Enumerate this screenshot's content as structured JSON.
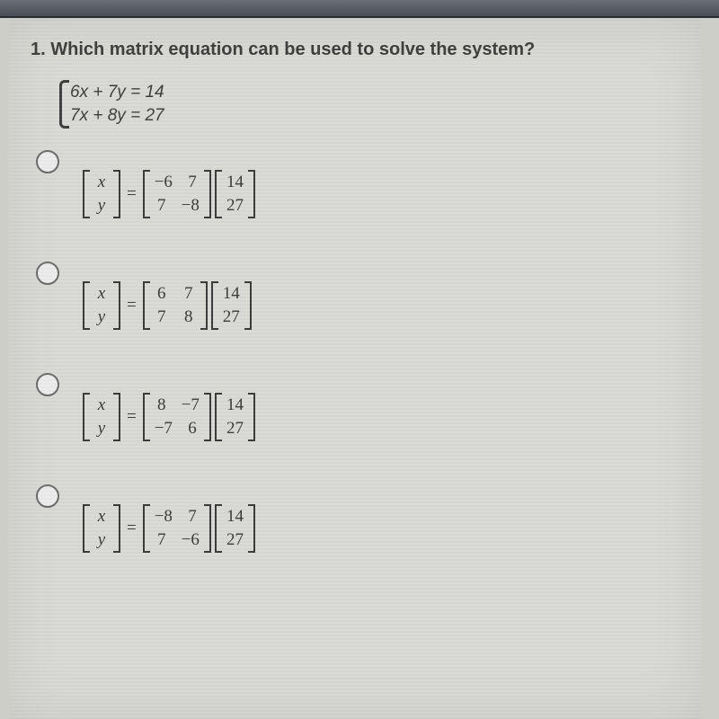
{
  "question": {
    "number": "1.",
    "text": "Which matrix equation can be used to solve the system?"
  },
  "system": {
    "eq1": "6x + 7y = 14",
    "eq2": "7x + 8y = 27"
  },
  "options": [
    {
      "lhs": [
        [
          "x"
        ],
        [
          "y"
        ]
      ],
      "A": [
        [
          "−6",
          "7"
        ],
        [
          "7",
          "−8"
        ]
      ],
      "b": [
        [
          "14"
        ],
        [
          "27"
        ]
      ]
    },
    {
      "lhs": [
        [
          "x"
        ],
        [
          "y"
        ]
      ],
      "A": [
        [
          "6",
          "7"
        ],
        [
          "7",
          "8"
        ]
      ],
      "b": [
        [
          "14"
        ],
        [
          "27"
        ]
      ]
    },
    {
      "lhs": [
        [
          "x"
        ],
        [
          "y"
        ]
      ],
      "A": [
        [
          "8",
          "−7"
        ],
        [
          "−7",
          "6"
        ]
      ],
      "b": [
        [
          "14"
        ],
        [
          "27"
        ]
      ]
    },
    {
      "lhs": [
        [
          "x"
        ],
        [
          "y"
        ]
      ],
      "A": [
        [
          "−8",
          "7"
        ],
        [
          "7",
          "−6"
        ]
      ],
      "b": [
        [
          "14"
        ],
        [
          "27"
        ]
      ]
    }
  ],
  "style": {
    "background_color": "#cecec8",
    "page_color": "#d9d9d5",
    "text_color": "#3e3e3e",
    "radio_border": "#6b6b6b",
    "question_fontsize": 20,
    "body_fontsize": 19
  }
}
